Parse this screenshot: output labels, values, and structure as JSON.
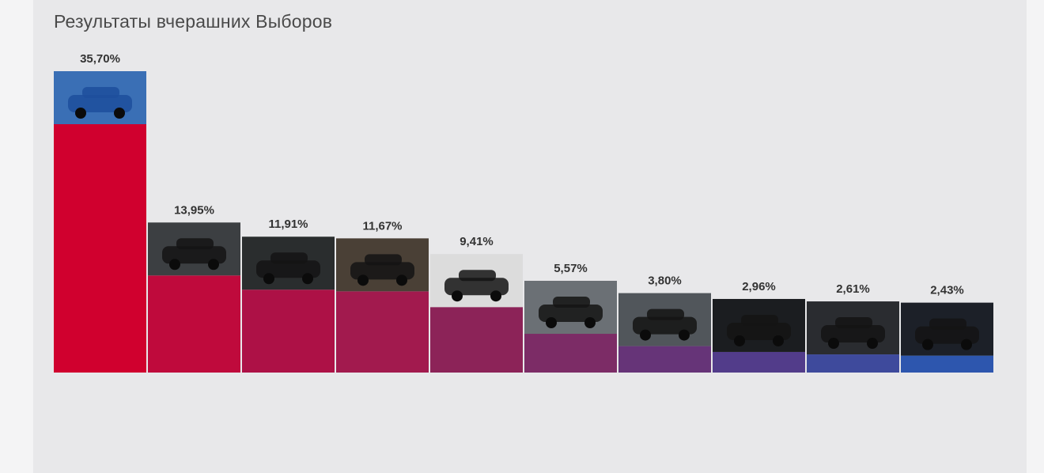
{
  "title": "Результаты вчерашних Выборов",
  "chart_data": {
    "type": "bar",
    "categories": [
      "",
      "",
      "",
      "",
      "",
      "",
      "",
      "",
      "",
      ""
    ],
    "values": [
      35.7,
      13.95,
      11.91,
      11.67,
      9.41,
      5.57,
      3.8,
      2.96,
      2.61,
      2.43
    ],
    "value_labels": [
      "35,70%",
      "13,95%",
      "11,91%",
      "11,67%",
      "9,41%",
      "5,57%",
      "3,80%",
      "2,96%",
      "2,61%",
      "2,43%"
    ],
    "bar_colors": [
      "#d0002e",
      "#bf0a3c",
      "#ad1146",
      "#a21a4e",
      "#8c2358",
      "#7c2c66",
      "#663478",
      "#523c8a",
      "#3e4a9c",
      "#2d56ae"
    ],
    "photo_tints": [
      "#3a6fb5",
      "#3c3f42",
      "#2a2d2e",
      "#4a4036",
      "#dcdcdc",
      "#6b7075",
      "#51565b",
      "#1b1d20",
      "#2a2c30",
      "#1c2028"
    ],
    "legend": "none",
    "grid": false
  }
}
